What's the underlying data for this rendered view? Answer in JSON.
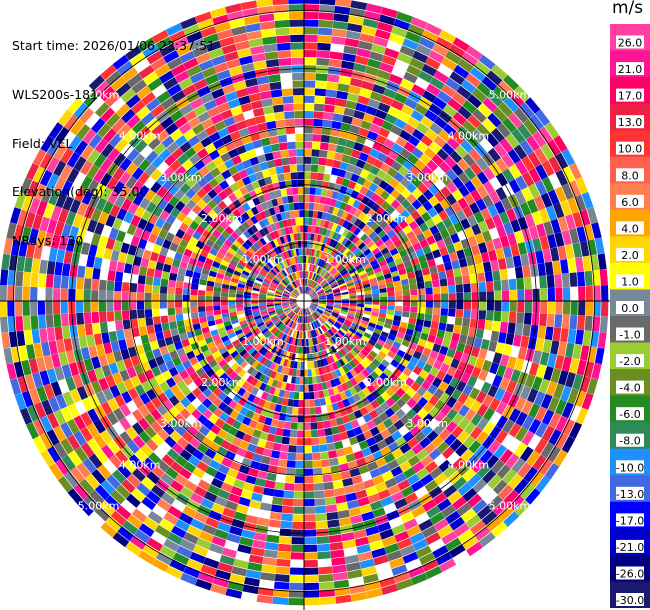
{
  "info": {
    "start_time": "Start time: 2026/01/06 23:37:51",
    "site": "WLS200s-181",
    "field": "Field: VEL",
    "elevation": "Elevation(deg): 35.00",
    "nrays": "NRays: 120"
  },
  "colorbar": {
    "unit": "m/s",
    "ticks": [
      "26.0",
      "21.0",
      "17.0",
      "13.0",
      "10.0",
      "8.0",
      "6.0",
      "4.0",
      "2.0",
      "1.0",
      "0.0",
      "-1.0",
      "-2.0",
      "-4.0",
      "-6.0",
      "-8.0",
      "-10.0",
      "-13.0",
      "-17.0",
      "-21.0",
      "-26.0",
      "-30.0"
    ],
    "colors": [
      "#ff40a0",
      "#ff1493",
      "#ff0066",
      "#ee2244",
      "#ff3333",
      "#ff6050",
      "#ff7f50",
      "#ffa500",
      "#ffd700",
      "#ffff00",
      "#778899",
      "#696969",
      "#9acd32",
      "#6b8e23",
      "#228b22",
      "#2e8b57",
      "#1e90ff",
      "#4169e1",
      "#0000ff",
      "#0000cd",
      "#000080",
      "#191970"
    ]
  },
  "chart_data": {
    "type": "heatmap",
    "field": "VEL",
    "units": "m/s",
    "nrays": 120,
    "range_rings_km": [
      1,
      2,
      3,
      4,
      5
    ],
    "range_ring_labels": [
      "1.00km",
      "2.00km",
      "3.00km",
      "4.00km",
      "5.00km"
    ],
    "vmin": -30,
    "vmax": 30,
    "color_levels": [
      -30,
      -26,
      -21,
      -17,
      -13,
      -10,
      -8,
      -6,
      -4,
      -2,
      -1,
      0,
      1,
      2,
      4,
      6,
      8,
      10,
      13,
      17,
      21,
      26,
      30
    ]
  }
}
